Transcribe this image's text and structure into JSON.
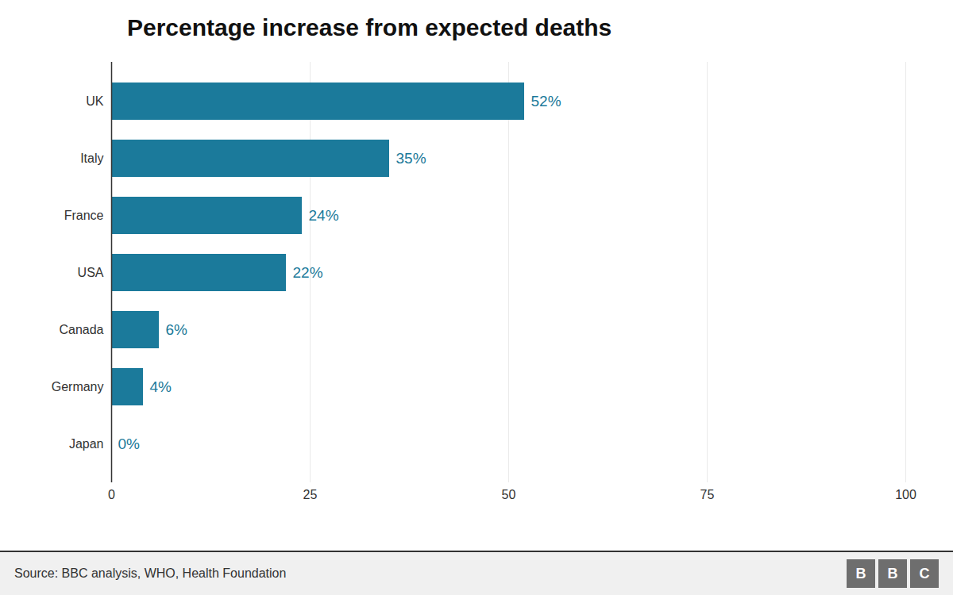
{
  "chart_data": {
    "type": "bar",
    "orientation": "horizontal",
    "title": "Percentage increase from expected deaths",
    "categories": [
      "UK",
      "Italy",
      "France",
      "USA",
      "Canada",
      "Germany",
      "Japan"
    ],
    "values": [
      52,
      35,
      24,
      22,
      6,
      4,
      0
    ],
    "value_labels": [
      "52%",
      "35%",
      "24%",
      "22%",
      "6%",
      "4%",
      "0%"
    ],
    "data_labels": true,
    "color": "#1b7a9b",
    "xlim": [
      0,
      100
    ],
    "xticks": [
      0,
      25,
      50,
      75,
      100
    ],
    "grid": true,
    "annotations": [
      "Source: BBC analysis, WHO, Health Foundation",
      "BBC"
    ]
  }
}
